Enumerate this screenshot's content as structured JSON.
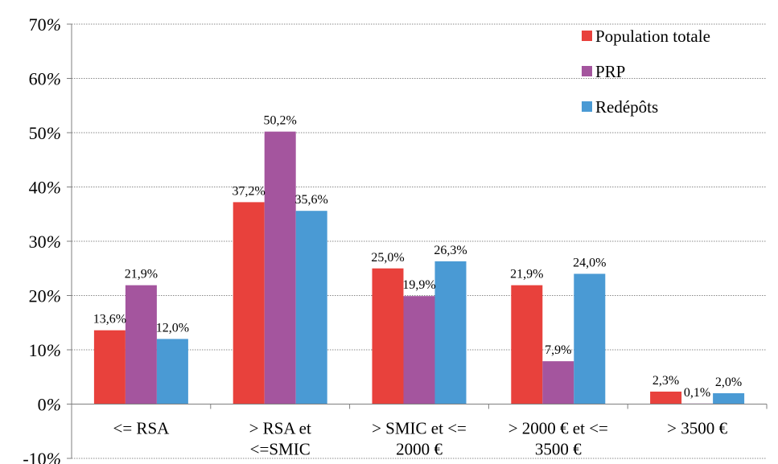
{
  "chart_data": {
    "type": "bar",
    "title": "",
    "xlabel": "",
    "ylabel": "",
    "ylim": [
      -10,
      70
    ],
    "y_ticks": [
      {
        "value": -10,
        "label": "-10%"
      },
      {
        "value": 0,
        "label": "0%"
      },
      {
        "value": 10,
        "label": "10%"
      },
      {
        "value": 20,
        "label": "20%"
      },
      {
        "value": 30,
        "label": "30%"
      },
      {
        "value": 40,
        "label": "40%"
      },
      {
        "value": 50,
        "label": "50%"
      },
      {
        "value": 60,
        "label": "60%"
      },
      {
        "value": 70,
        "label": "70%"
      }
    ],
    "grid": true,
    "legend_position": "top-right",
    "categories": [
      [
        "<= RSA"
      ],
      [
        "> RSA et",
        "<=SMIC"
      ],
      [
        "> SMIC et <=",
        "2000 €"
      ],
      [
        "> 2000 € et <=",
        "3500 €"
      ],
      [
        "> 3500 €"
      ]
    ],
    "series": [
      {
        "name": "Population totale",
        "color": "#e8413c",
        "values": [
          13.6,
          37.2,
          25.0,
          21.9,
          2.3
        ],
        "labels": [
          "13,6%",
          "37,2%",
          "25,0%",
          "21,9%",
          "2,3%"
        ]
      },
      {
        "name": "PRP",
        "color": "#a4559e",
        "values": [
          21.9,
          50.2,
          19.9,
          7.9,
          0.1
        ],
        "labels": [
          "21,9%",
          "50,2%",
          "19,9%",
          "7,9%",
          "0,1%"
        ]
      },
      {
        "name": "Redépôts",
        "color": "#4a9ad4",
        "values": [
          12.0,
          35.6,
          26.3,
          24.0,
          2.0
        ],
        "labels": [
          "12,0%",
          "35,6%",
          "26,3%",
          "24,0%",
          "2,0%"
        ]
      }
    ]
  }
}
